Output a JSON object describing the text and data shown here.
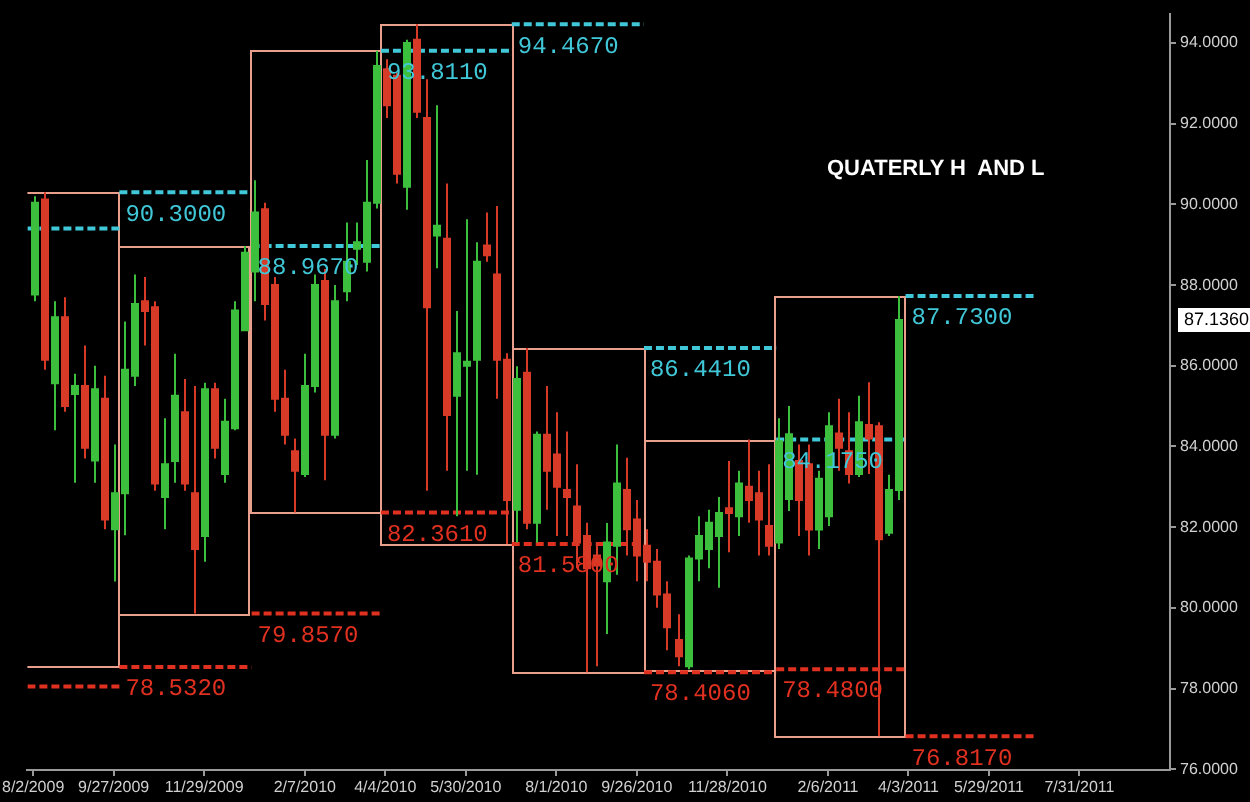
{
  "chart_data": {
    "type": "candlestick",
    "title": "QUATERLY H  AND L",
    "x": [
      "2009-08-02",
      "2009-08-09",
      "2009-08-16",
      "2009-08-23",
      "2009-08-30",
      "2009-09-06",
      "2009-09-13",
      "2009-09-20",
      "2009-09-27",
      "2009-10-04",
      "2009-10-11",
      "2009-10-18",
      "2009-10-25",
      "2009-11-01",
      "2009-11-08",
      "2009-11-15",
      "2009-11-22",
      "2009-11-29",
      "2009-12-06",
      "2009-12-13",
      "2009-12-20",
      "2009-12-27",
      "2010-01-03",
      "2010-01-10",
      "2010-01-17",
      "2010-01-24",
      "2010-01-31",
      "2010-02-07",
      "2010-02-14",
      "2010-02-21",
      "2010-02-28",
      "2010-03-07",
      "2010-03-14",
      "2010-03-21",
      "2010-03-28",
      "2010-04-04",
      "2010-04-11",
      "2010-04-18",
      "2010-04-25",
      "2010-05-02",
      "2010-05-09",
      "2010-05-16",
      "2010-05-23",
      "2010-05-30",
      "2010-06-06",
      "2010-06-13",
      "2010-06-20",
      "2010-06-27",
      "2010-07-04",
      "2010-07-11",
      "2010-07-18",
      "2010-07-25",
      "2010-08-01",
      "2010-08-08",
      "2010-08-15",
      "2010-08-22",
      "2010-08-29",
      "2010-09-05",
      "2010-09-12",
      "2010-09-19",
      "2010-09-26",
      "2010-10-03",
      "2010-10-10",
      "2010-10-17",
      "2010-10-24",
      "2010-10-31",
      "2010-11-07",
      "2010-11-14",
      "2010-11-21",
      "2010-11-28",
      "2010-12-05",
      "2010-12-12",
      "2010-12-19",
      "2010-12-26",
      "2011-01-02",
      "2011-01-09",
      "2011-01-16",
      "2011-01-23",
      "2011-01-30",
      "2011-02-06",
      "2011-02-13",
      "2011-02-20",
      "2011-02-27",
      "2011-03-06",
      "2011-03-13",
      "2011-03-20",
      "2011-03-27"
    ],
    "ohlc": [
      [
        87.77,
        90.2,
        87.6,
        90.04
      ],
      [
        90.12,
        90.3,
        85.9,
        86.15
      ],
      [
        85.57,
        87.6,
        84.4,
        87.2
      ],
      [
        87.2,
        87.7,
        84.86,
        85.0
      ],
      [
        85.3,
        85.8,
        83.1,
        85.5
      ],
      [
        85.5,
        86.5,
        83.7,
        83.97
      ],
      [
        83.65,
        86.0,
        83.1,
        85.42
      ],
      [
        85.18,
        85.75,
        81.95,
        82.19
      ],
      [
        81.95,
        84.05,
        80.65,
        82.84
      ],
      [
        82.84,
        87.1,
        81.8,
        85.9
      ],
      [
        85.75,
        88.26,
        85.5,
        87.53
      ],
      [
        87.6,
        88.2,
        86.5,
        87.36
      ],
      [
        87.45,
        87.6,
        82.9,
        83.08
      ],
      [
        82.75,
        84.7,
        81.95,
        83.56
      ],
      [
        83.64,
        86.3,
        83.1,
        85.26
      ],
      [
        84.85,
        85.67,
        82.9,
        83.08
      ],
      [
        82.84,
        85.5,
        79.857,
        81.46
      ],
      [
        81.78,
        85.58,
        81.14,
        85.42
      ],
      [
        85.42,
        85.58,
        83.7,
        83.97
      ],
      [
        83.32,
        85.18,
        83.1,
        84.61
      ],
      [
        84.45,
        87.6,
        84.4,
        87.37
      ],
      [
        86.88,
        88.967,
        86.88,
        88.8
      ],
      [
        88.34,
        90.6,
        87.6,
        89.8
      ],
      [
        89.88,
        90.04,
        87.12,
        87.53
      ],
      [
        88.0,
        88.2,
        84.86,
        85.18
      ],
      [
        85.18,
        85.9,
        84.05,
        84.29
      ],
      [
        83.88,
        84.2,
        82.361,
        83.4
      ],
      [
        83.32,
        86.3,
        83.24,
        85.5
      ],
      [
        85.5,
        88.26,
        85.34,
        88.0
      ],
      [
        88.1,
        88.4,
        83.16,
        84.29
      ],
      [
        84.29,
        88.0,
        84.2,
        87.6
      ],
      [
        87.85,
        89.55,
        87.6,
        88.58
      ],
      [
        88.9,
        89.55,
        88.5,
        89.06
      ],
      [
        88.58,
        91.1,
        88.34,
        90.04
      ],
      [
        90.04,
        93.811,
        89.9,
        93.43
      ],
      [
        93.35,
        93.6,
        92.14,
        92.46
      ],
      [
        93.19,
        93.27,
        90.52,
        90.76
      ],
      [
        90.44,
        94.08,
        89.87,
        94.0
      ],
      [
        94.08,
        94.467,
        92.14,
        92.3
      ],
      [
        92.14,
        93.1,
        82.9,
        87.45
      ],
      [
        89.23,
        92.46,
        88.42,
        89.47
      ],
      [
        89.15,
        90.52,
        83.4,
        84.78
      ],
      [
        85.26,
        87.36,
        82.27,
        86.31
      ],
      [
        86.0,
        89.63,
        83.4,
        86.1
      ],
      [
        86.15,
        89.06,
        83.3,
        88.58
      ],
      [
        88.98,
        89.8,
        88.58,
        88.74
      ],
      [
        88.26,
        89.96,
        85.18,
        86.15
      ],
      [
        86.15,
        86.31,
        81.58,
        82.67
      ],
      [
        82.43,
        85.99,
        81.62,
        85.67
      ],
      [
        85.83,
        86.441,
        81.95,
        82.11
      ],
      [
        82.11,
        84.37,
        81.62,
        84.29
      ],
      [
        84.29,
        85.5,
        82.43,
        83.4
      ],
      [
        83.8,
        84.85,
        81.78,
        83.0
      ],
      [
        82.92,
        84.37,
        81.78,
        82.75
      ],
      [
        82.51,
        83.56,
        80.98,
        81.62
      ],
      [
        81.78,
        82.11,
        78.406,
        80.98
      ],
      [
        81.3,
        81.62,
        78.55,
        81.05
      ],
      [
        80.66,
        82.1,
        79.35,
        81.62
      ],
      [
        81.54,
        84.05,
        80.82,
        83.08
      ],
      [
        82.92,
        83.72,
        81.3,
        81.95
      ],
      [
        82.19,
        82.67,
        80.66,
        81.3
      ],
      [
        81.54,
        81.95,
        80.66,
        81.14
      ],
      [
        81.14,
        81.46,
        80.0,
        80.33
      ],
      [
        80.33,
        80.66,
        78.95,
        79.52
      ],
      [
        79.2,
        79.84,
        78.55,
        78.8
      ],
      [
        78.55,
        81.3,
        78.48,
        81.22
      ],
      [
        81.22,
        82.27,
        80.66,
        81.78
      ],
      [
        81.46,
        82.43,
        80.98,
        82.11
      ],
      [
        81.78,
        82.75,
        80.5,
        82.35
      ],
      [
        82.47,
        83.64,
        81.38,
        82.35
      ],
      [
        82.27,
        83.4,
        81.78,
        83.08
      ],
      [
        83.0,
        84.175,
        82.11,
        82.67
      ],
      [
        82.84,
        83.4,
        81.3,
        82.19
      ],
      [
        82.03,
        83.56,
        81.3,
        81.54
      ],
      [
        81.62,
        84.7,
        81.46,
        84.13
      ],
      [
        82.7,
        85.0,
        82.4,
        84.3
      ],
      [
        83.64,
        84.05,
        81.78,
        82.67
      ],
      [
        83.56,
        84.05,
        81.3,
        81.94
      ],
      [
        81.94,
        83.4,
        81.46,
        83.2
      ],
      [
        82.27,
        84.85,
        82.03,
        84.5
      ],
      [
        84.32,
        85.18,
        83.4,
        83.97
      ],
      [
        83.88,
        84.85,
        83.08,
        83.32
      ],
      [
        83.32,
        85.26,
        83.24,
        84.6
      ],
      [
        84.53,
        85.59,
        83.32,
        84.2
      ],
      [
        84.5,
        84.6,
        76.817,
        81.7
      ],
      [
        81.86,
        83.3,
        81.78,
        82.92
      ],
      [
        82.92,
        87.73,
        82.67,
        87.136
      ]
    ],
    "colors": [
      "#3cbf3c",
      "#d83a28",
      "#3cbf3c",
      "#d83a28",
      "#3cbf3c",
      "#d83a28",
      "#3cbf3c",
      "#d83a28",
      "#3cbf3c",
      "#3cbf3c",
      "#3cbf3c",
      "#d83a28",
      "#d83a28",
      "#3cbf3c",
      "#3cbf3c",
      "#d83a28",
      "#d83a28",
      "#3cbf3c",
      "#d83a28",
      "#3cbf3c",
      "#3cbf3c",
      "#3cbf3c",
      "#3cbf3c",
      "#d83a28",
      "#d83a28",
      "#d83a28",
      "#d83a28",
      "#3cbf3c",
      "#3cbf3c",
      "#d83a28",
      "#3cbf3c",
      "#3cbf3c",
      "#3cbf3c",
      "#3cbf3c",
      "#3cbf3c",
      "#d83a28",
      "#d83a28",
      "#3cbf3c",
      "#d83a28",
      "#d83a28",
      "#3cbf3c",
      "#d83a28",
      "#3cbf3c",
      "#3cbf3c",
      "#3cbf3c",
      "#d83a28",
      "#d83a28",
      "#d83a28",
      "#3cbf3c",
      "#d83a28",
      "#3cbf3c",
      "#d83a28",
      "#d83a28",
      "#d83a28",
      "#d83a28",
      "#d83a28",
      "#d83a28",
      "#3cbf3c",
      "#3cbf3c",
      "#d83a28",
      "#d83a28",
      "#d83a28",
      "#d83a28",
      "#d83a28",
      "#d83a28",
      "#3cbf3c",
      "#3cbf3c",
      "#3cbf3c",
      "#3cbf3c",
      "#d83a28",
      "#3cbf3c",
      "#d83a28",
      "#d83a28",
      "#d83a28",
      "#3cbf3c",
      "#3cbf3c",
      "#d83a28",
      "#d83a28",
      "#3cbf3c",
      "#3cbf3c",
      "#d83a28",
      "#d83a28",
      "#3cbf3c",
      "#d83a28",
      "#d83a28",
      "#3cbf3c",
      "#3cbf3c"
    ],
    "series": [
      {
        "type": "bar",
        "color": "#e8a08c",
        "x": [
          "2009-08-16",
          "2009-11-15",
          "2010-02-14",
          "2010-05-16",
          "2010-08-16",
          "2010-11-15",
          "2011-02-14"
        ],
        "base": [
          78.532,
          79.857,
          82.361,
          81.58,
          78.406,
          78.48,
          76.817
        ],
        "values": [
          11.768,
          9.11,
          11.45,
          12.887,
          8.035,
          5.695,
          10.913
        ]
      },
      {
        "type": "line",
        "color": "#40c8d8",
        "line_style": "dashed",
        "x": [
          "2009-07-29",
          "2009-10-01",
          "2009-10-01",
          "2010-01-01",
          "2010-01-01",
          "2010-04-01",
          "2010-04-01",
          "2010-07-01",
          "2010-07-01",
          "2010-10-01",
          "2010-10-01",
          "2011-01-01",
          "2011-01-01",
          "2011-04-01",
          "2011-04-01",
          "2011-07-01"
        ],
        "values": [
          89.4,
          89.4,
          90.3,
          90.3,
          88.967,
          88.967,
          93.811,
          93.811,
          94.467,
          94.467,
          86.441,
          86.441,
          84.175,
          84.175,
          87.73,
          87.73
        ]
      },
      {
        "type": "line",
        "color": "#e03020",
        "line_style": "dashed",
        "x": [
          "2009-07-29",
          "2009-10-01",
          "2009-10-01",
          "2010-01-01",
          "2010-01-01",
          "2010-04-01",
          "2010-04-01",
          "2010-07-01",
          "2010-07-01",
          "2010-10-01",
          "2010-10-01",
          "2011-01-01",
          "2011-01-01",
          "2011-04-01",
          "2011-04-01",
          "2011-07-01"
        ],
        "values": [
          78.05,
          78.05,
          78.532,
          78.532,
          79.857,
          79.857,
          82.361,
          82.361,
          81.58,
          81.58,
          78.406,
          78.406,
          78.48,
          78.48,
          76.817,
          76.817
        ]
      }
    ],
    "annotations": [
      {
        "text": "90.3000",
        "x": "2009-10-01",
        "y": 90.3
      },
      {
        "text": "78.5320",
        "x": "2009-10-01",
        "y": 78.532
      },
      {
        "text": "88.9670",
        "x": "2010-01-01",
        "y": 88.967
      },
      {
        "text": "79.8570",
        "x": "2010-01-01",
        "y": 79.857
      },
      {
        "text": "93.8110",
        "x": "2010-04-01",
        "y": 93.811
      },
      {
        "text": "82.3610",
        "x": "2010-04-01",
        "y": 82.361
      },
      {
        "text": "94.4670",
        "x": "2010-07-01",
        "y": 94.467
      },
      {
        "text": "81.5800",
        "x": "2010-07-01",
        "y": 81.58
      },
      {
        "text": "86.4410",
        "x": "2010-10-01",
        "y": 86.441
      },
      {
        "text": "78.4060",
        "x": "2010-10-01",
        "y": 78.406
      },
      {
        "text": "84.1750",
        "x": "2011-01-01",
        "y": 84.175
      },
      {
        "text": "78.4800",
        "x": "2011-01-01",
        "y": 78.48
      },
      {
        "text": "87.7300",
        "x": "2011-04-01",
        "y": 87.73
      },
      {
        "text": "76.8170",
        "x": "2011-04-01",
        "y": 76.817
      },
      "87.1360"
    ],
    "xlim": [
      "2009-07-29",
      "2011-10-02"
    ],
    "xticks": [
      {
        "value": "2009-08-02",
        "label": "8/2/2009"
      },
      {
        "value": "2009-09-27",
        "label": "9/27/2009"
      },
      {
        "value": "2009-11-29",
        "label": "11/29/2009"
      },
      {
        "value": "2010-02-07",
        "label": "2/7/2010"
      },
      {
        "value": "2010-04-04",
        "label": "4/4/2010"
      },
      {
        "value": "2010-05-30",
        "label": "5/30/2010"
      },
      {
        "value": "2010-08-01",
        "label": "8/1/2010"
      },
      {
        "value": "2010-09-26",
        "label": "9/26/2010"
      },
      {
        "value": "2010-11-28",
        "label": "11/28/2010"
      },
      {
        "value": "2011-02-06",
        "label": "2/6/2011"
      },
      {
        "value": "2011-04-03",
        "label": "4/3/2011"
      },
      {
        "value": "2011-05-29",
        "label": "5/29/2011"
      },
      {
        "value": "2011-07-31",
        "label": "7/31/2011"
      }
    ],
    "ylim": [
      75.98,
      94.73
    ],
    "yticks": [
      {
        "value": 76,
        "label": "76.0000"
      },
      {
        "value": 78,
        "label": "78.0000"
      },
      {
        "value": 80,
        "label": "80.0000"
      },
      {
        "value": 82,
        "label": "82.0000"
      },
      {
        "value": 84,
        "label": "84.0000"
      },
      {
        "value": 86,
        "label": "86.0000"
      },
      {
        "value": 88,
        "label": "88.0000"
      },
      {
        "value": 90,
        "label": "90.0000"
      },
      {
        "value": 92,
        "label": "92.0000"
      },
      {
        "value": 94,
        "label": "94.0000"
      }
    ]
  }
}
